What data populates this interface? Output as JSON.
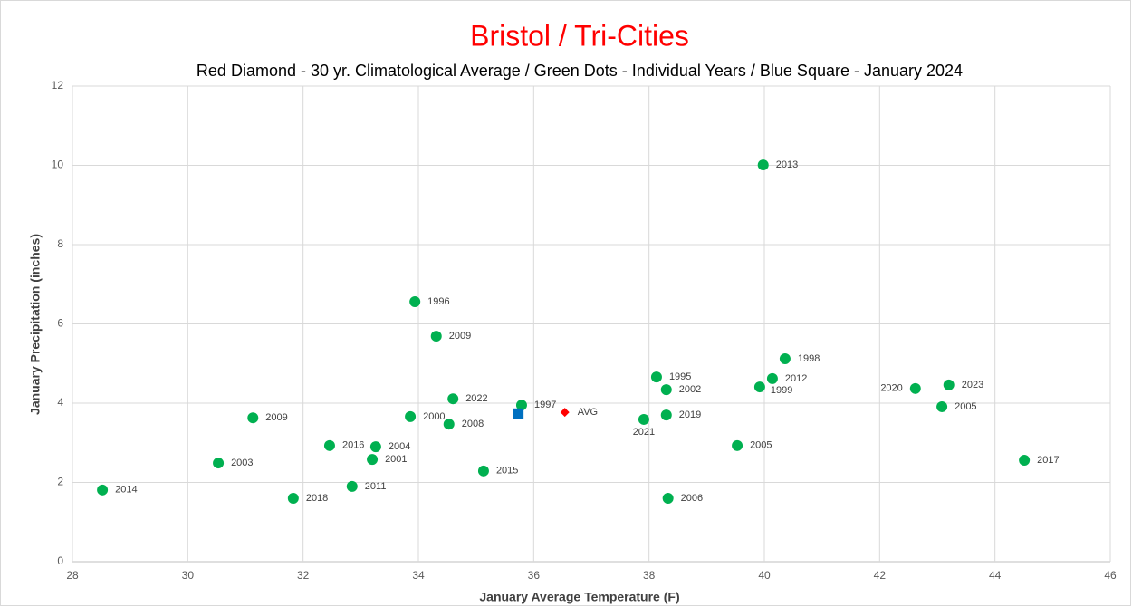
{
  "chart_data": {
    "type": "scatter",
    "title": "Bristol / Tri-Cities",
    "subtitle": "Red Diamond - 30 yr. Climatological Average / Green Dots - Individual Years / Blue Square - January 2024",
    "xlabel": "January  Average Temperature (F)",
    "ylabel": "January  Precipitation (inches)",
    "xlim": [
      28,
      46
    ],
    "xticks": [
      28,
      30,
      32,
      34,
      36,
      38,
      40,
      42,
      44,
      46
    ],
    "ylim": [
      0,
      12
    ],
    "yticks": [
      0,
      2,
      4,
      6,
      8,
      10,
      12
    ],
    "grid": true,
    "series": [
      {
        "color": "#00b050",
        "marker": "circle",
        "x": [
          28.52,
          30.53,
          31.13,
          31.83,
          32.46,
          32.85,
          33.26,
          33.2,
          33.86,
          33.94,
          34.31,
          34.6,
          34.53,
          35.13,
          35.79,
          37.91,
          38.13,
          38.3,
          38.3,
          38.33,
          39.53,
          39.98,
          39.92,
          40.14,
          40.36,
          42.62,
          43.2,
          43.08,
          44.51
        ],
        "values": [
          1.81,
          2.49,
          3.63,
          1.6,
          2.93,
          1.9,
          2.9,
          2.58,
          3.66,
          6.56,
          5.69,
          4.11,
          3.47,
          2.29,
          3.95,
          3.59,
          4.66,
          4.34,
          3.7,
          1.6,
          2.93,
          10.01,
          4.41,
          4.62,
          5.12,
          4.37,
          4.46,
          3.91,
          2.56
        ],
        "labels": [
          "2014",
          "2003",
          "2009",
          "2018",
          "2016",
          "2011",
          "2004",
          "2001",
          "2000",
          "1996",
          "2009",
          "2022",
          "2008",
          "2015",
          "1997",
          "2021",
          "1995",
          "2002",
          "2019",
          "2006",
          "2005",
          "2013",
          "1999",
          "2012",
          "1998",
          "2020",
          "2023",
          "2005",
          "2017"
        ]
      },
      {
        "color": "#ff0000",
        "marker": "diamond",
        "x": [
          36.54
        ],
        "values": [
          3.77
        ],
        "labels": [
          "AVG"
        ]
      },
      {
        "color": "#0070c0",
        "marker": "square",
        "x": [
          35.73
        ],
        "values": [
          3.73
        ]
      }
    ]
  }
}
